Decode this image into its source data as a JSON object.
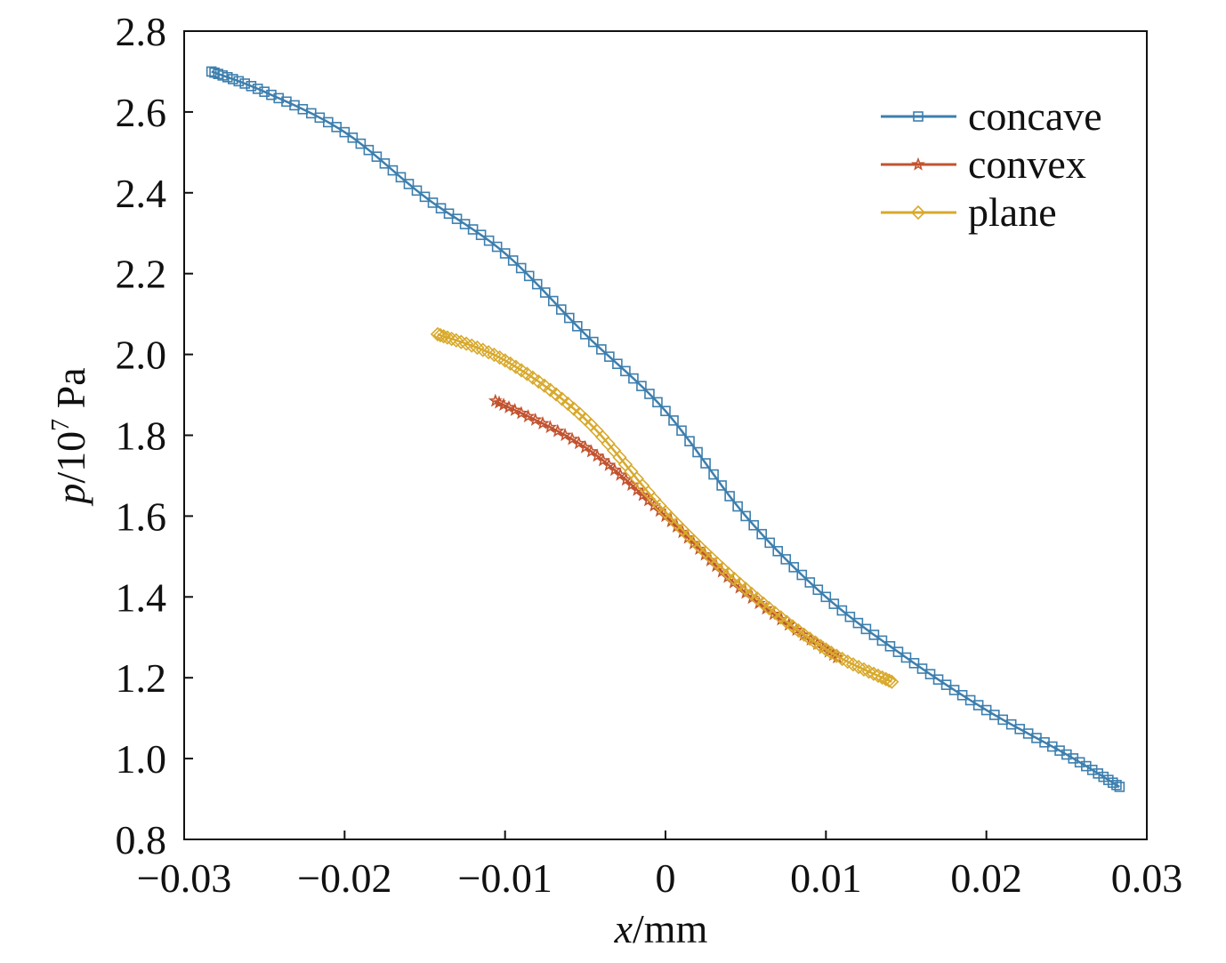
{
  "chart_data": {
    "type": "line",
    "title": "",
    "xlabel": "x/mm",
    "xlabel_italic": "x",
    "xlabel_rest": "/mm",
    "ylabel_italic": "p",
    "ylabel_rest": "/10",
    "ylabel_sup": "7",
    "ylabel_unit": " Pa",
    "ylabel": "p/10^7 Pa",
    "xlim": [
      -0.03,
      0.03
    ],
    "ylim": [
      0.8,
      2.8
    ],
    "xticks": [
      -0.03,
      -0.02,
      -0.01,
      0,
      0.01,
      0.02,
      0.03
    ],
    "xtick_labels": [
      "−0.03",
      "−0.02",
      "−0.01",
      "0",
      "0.01",
      "0.02",
      "0.03"
    ],
    "yticks": [
      0.8,
      1.0,
      1.2,
      1.4,
      1.6,
      1.8,
      2.0,
      2.2,
      2.4,
      2.6,
      2.8
    ],
    "ytick_labels": [
      "0.8",
      "1.0",
      "1.2",
      "1.4",
      "1.6",
      "1.8",
      "2.0",
      "2.2",
      "2.4",
      "2.6",
      "2.8"
    ],
    "grid": false,
    "legend_position": "top-right",
    "series": [
      {
        "name": "concave",
        "color": "#3d7fae",
        "marker": "square",
        "x": [
          -0.0283,
          -0.025,
          -0.02,
          -0.015,
          -0.01,
          -0.005,
          0,
          0.005,
          0.01,
          0.015,
          0.02,
          0.025,
          0.0283
        ],
        "y": [
          2.7,
          2.65,
          2.55,
          2.39,
          2.25,
          2.05,
          1.86,
          1.6,
          1.4,
          1.25,
          1.12,
          1.01,
          0.93
        ]
      },
      {
        "name": "convex",
        "color": "#c2532f",
        "marker": "star",
        "x": [
          -0.0106,
          -0.005,
          0,
          0.005,
          0.0107
        ],
        "y": [
          1.885,
          1.77,
          1.6,
          1.41,
          1.25
        ]
      },
      {
        "name": "plane",
        "color": "#d8a92b",
        "marker": "diamond",
        "x": [
          -0.0142,
          -0.01,
          -0.005,
          0,
          0.005,
          0.01,
          0.0141
        ],
        "y": [
          2.05,
          1.985,
          1.84,
          1.61,
          1.42,
          1.27,
          1.19
        ]
      }
    ]
  }
}
